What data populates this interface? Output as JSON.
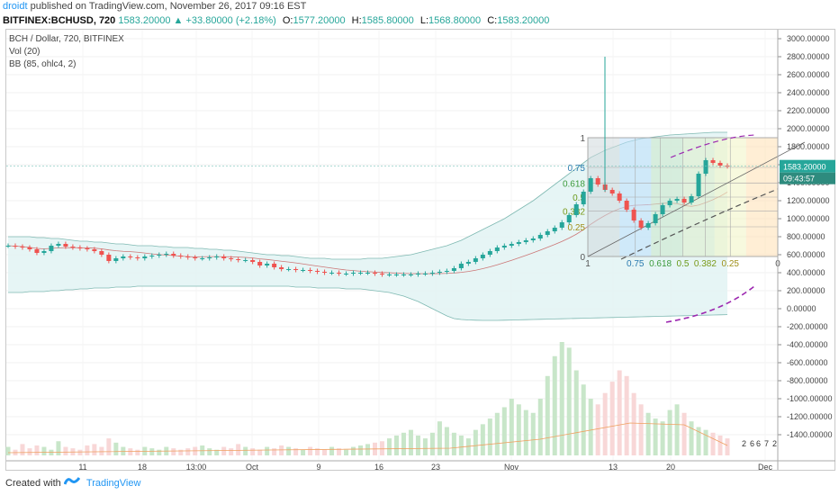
{
  "header": {
    "publisher": "droidt",
    "published_text": "published on TradingView.com, November 26, 2017 09:16 EST"
  },
  "symbol_bar": {
    "symbol": "BITFINEX:BCHUSD, 720",
    "last": "1583.20000",
    "change": "▲ +33.80000 (+2.18%)",
    "o_label": "O:",
    "o_value": "1577.20000",
    "h_label": "H:",
    "h_value": "1585.80000",
    "l_label": "L:",
    "l_value": "1568.80000",
    "c_label": "C:",
    "c_value": "1583.20000"
  },
  "legend": {
    "title": "BCH / Dollar, 720, BITFINEX",
    "vol": "Vol (20)",
    "bb": "BB (85, ohlc4, 2)"
  },
  "price_tag": {
    "price": "1583.20000",
    "countdown": "09:43:57"
  },
  "footer": {
    "created_with": "Created with",
    "brand": "TradingView"
  },
  "colors": {
    "up": "#26a69a",
    "down": "#ef5350",
    "bb_fill": "#e3f4f4",
    "accent": "#2196f3",
    "fan_purple": "#9c27b0"
  },
  "chart_data": {
    "type": "candlestick",
    "y_ticks": [
      "3000.00000",
      "2800.00000",
      "2600.00000",
      "2400.00000",
      "2200.00000",
      "2000.00000",
      "1800.00000",
      "1600.00000",
      "1400.00000",
      "1200.00000",
      "1000.00000",
      "800.00000",
      "600.00000",
      "400.00000",
      "200.00000",
      "0.00000",
      "-200.00000",
      "-400.00000",
      "-600.00000",
      "-800.00000",
      "-1000.00000",
      "-1200.00000",
      "-1400.00000"
    ],
    "x_ticks": [
      "11",
      "18",
      "13:00",
      "Oct",
      "9",
      "16",
      "23",
      "Nov",
      "13",
      "20",
      "Dec"
    ],
    "fib_y_levels": [
      "1",
      "0.75",
      "0.618",
      "0.5",
      "0.382",
      "0.25",
      "0"
    ],
    "fib_x_levels": [
      "1",
      "0.75",
      "0.618",
      "0.5",
      "0.382",
      "0.25",
      "0"
    ],
    "volume_tail_labels": [
      "2",
      "6",
      "6",
      "7",
      "2"
    ],
    "ylim": [
      -1500,
      3000
    ],
    "close": [
      700,
      690,
      680,
      660,
      620,
      640,
      700,
      720,
      690,
      680,
      670,
      660,
      640,
      600,
      530,
      560,
      580,
      570,
      560,
      580,
      590,
      600,
      610,
      590,
      580,
      570,
      560,
      560,
      570,
      580,
      560,
      550,
      540,
      540,
      520,
      480,
      500,
      460,
      440,
      440,
      430,
      430,
      420,
      410,
      400,
      400,
      390,
      390,
      400,
      400,
      400,
      390,
      380,
      380,
      380,
      380,
      380,
      390,
      390,
      400,
      410,
      420,
      450,
      500,
      520,
      560,
      600,
      640,
      680,
      700,
      720,
      740,
      760,
      780,
      820,
      860,
      900,
      960,
      1040,
      1160,
      1300,
      1450,
      1380,
      1320,
      1280,
      1200,
      1100,
      980,
      900,
      950,
      1050,
      1150,
      1200,
      1220,
      1180,
      1250,
      1500,
      1650,
      1620,
      1590,
      1583
    ],
    "bb_upper": [
      800,
      800,
      800,
      800,
      790,
      790,
      780,
      780,
      770,
      760,
      750,
      750,
      740,
      740,
      730,
      720,
      720,
      710,
      700,
      700,
      700,
      690,
      690,
      680,
      680,
      680,
      670,
      670,
      660,
      660,
      650,
      650,
      640,
      630,
      620,
      610,
      600,
      600,
      590,
      590,
      580,
      570,
      560,
      560,
      560,
      550,
      550,
      550,
      550,
      550,
      560,
      560,
      560,
      570,
      580,
      590,
      600,
      620,
      640,
      660,
      680,
      700,
      730,
      760,
      800,
      840,
      880,
      920,
      960,
      1000,
      1050,
      1100,
      1150,
      1200,
      1260,
      1320,
      1380,
      1440,
      1500,
      1560,
      1620,
      1680,
      1720,
      1760,
      1790,
      1820,
      1850,
      1870,
      1890,
      1900,
      1910,
      1920,
      1930,
      1935,
      1940,
      1945,
      1950,
      1955,
      1960,
      1960,
      1960
    ],
    "bb_lower": [
      180,
      180,
      180,
      190,
      190,
      190,
      200,
      200,
      210,
      210,
      220,
      220,
      230,
      230,
      230,
      240,
      240,
      240,
      250,
      250,
      250,
      250,
      250,
      250,
      250,
      250,
      250,
      250,
      250,
      250,
      250,
      250,
      250,
      250,
      250,
      250,
      250,
      250,
      250,
      250,
      240,
      240,
      240,
      230,
      230,
      230,
      230,
      220,
      220,
      220,
      210,
      200,
      190,
      180,
      160,
      140,
      110,
      80,
      40,
      0,
      -40,
      -80,
      -110,
      -120,
      -125,
      -128,
      -130,
      -130,
      -130,
      -128,
      -126,
      -124,
      -122,
      -120,
      -118,
      -116,
      -114,
      -112,
      -110,
      -108,
      -106,
      -104,
      -102,
      -100,
      -98,
      -96,
      -94,
      -92,
      -90,
      -88,
      -86,
      -84,
      -82,
      -80,
      -78,
      -76,
      -74,
      -72,
      -70,
      -68,
      -66
    ],
    "volume": [
      30,
      20,
      40,
      25,
      35,
      30,
      20,
      50,
      30,
      25,
      20,
      35,
      40,
      30,
      60,
      45,
      30,
      25,
      20,
      30,
      25,
      20,
      30,
      25,
      20,
      25,
      30,
      35,
      25,
      20,
      30,
      25,
      40,
      30,
      25,
      20,
      30,
      25,
      35,
      30,
      25,
      20,
      30,
      25,
      20,
      30,
      25,
      20,
      30,
      35,
      40,
      45,
      50,
      60,
      70,
      80,
      90,
      70,
      60,
      80,
      120,
      100,
      80,
      70,
      60,
      90,
      110,
      130,
      150,
      170,
      200,
      180,
      160,
      150,
      200,
      280,
      350,
      400,
      380,
      300,
      250,
      200,
      180,
      220,
      260,
      300,
      280,
      220,
      180,
      150,
      130,
      120,
      160,
      180,
      150,
      120,
      100,
      90,
      80,
      70,
      60
    ]
  }
}
